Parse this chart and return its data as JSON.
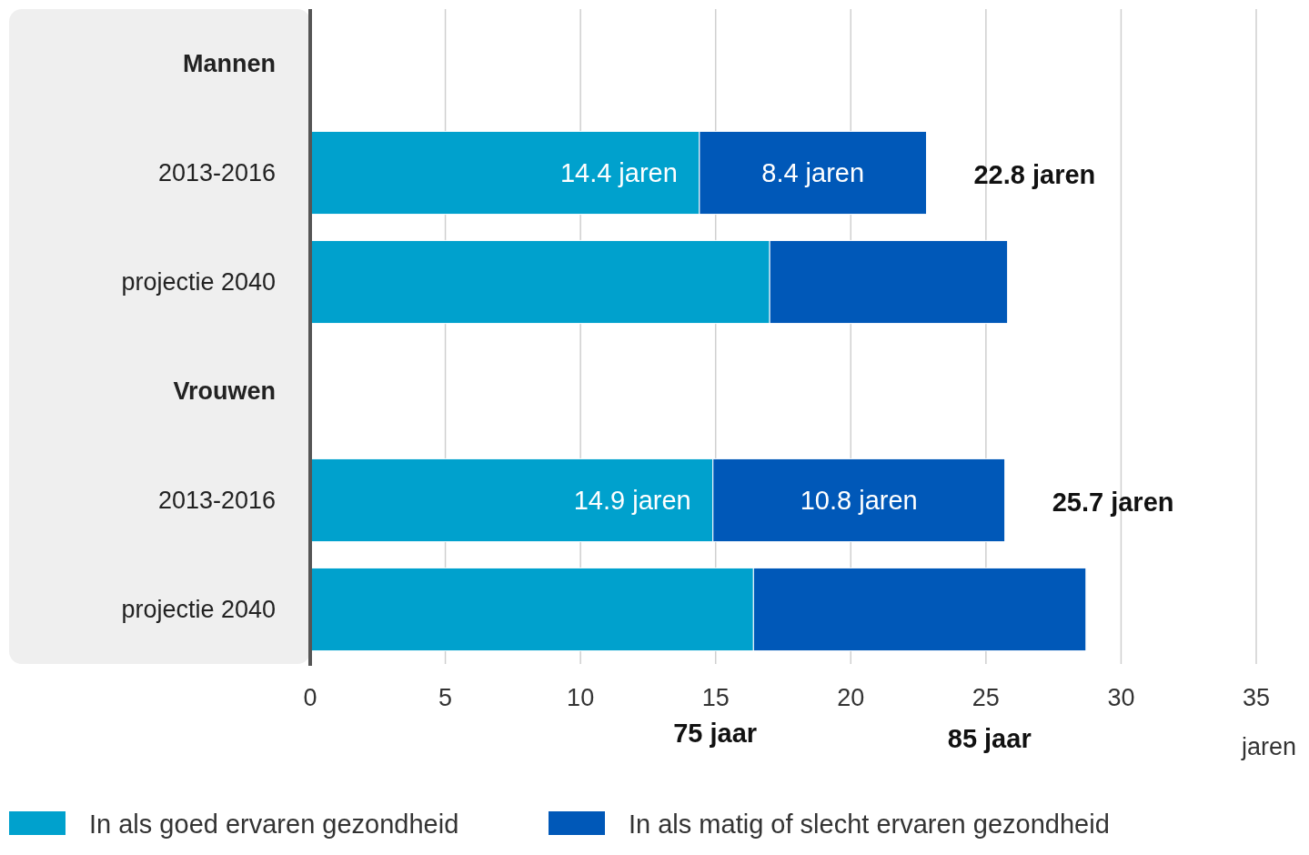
{
  "chart_data": {
    "type": "bar",
    "orientation": "horizontal",
    "stacked": true,
    "xlabel": "jaren",
    "categories": [
      "Mannen",
      "2013-2016",
      "projectie 2040",
      "Vrouwen",
      "2013-2016",
      "projectie 2040"
    ],
    "series": [
      {
        "name": "In als goed ervaren gezondheid",
        "color": "#00a1cd",
        "values": [
          null,
          14.4,
          17.0,
          null,
          14.9,
          16.4
        ],
        "value_labels": [
          null,
          "14.4 jaren",
          null,
          null,
          "14.9 jaren",
          null
        ]
      },
      {
        "name": "In als matig of slecht ervaren gezondheid",
        "color": "#0058b8",
        "values": [
          null,
          8.4,
          8.8,
          null,
          10.8,
          12.3
        ],
        "value_labels": [
          null,
          "8.4 jaren",
          null,
          null,
          "10.8 jaren",
          null
        ]
      }
    ],
    "totals": [
      null,
      "22.8 jaren",
      null,
      null,
      "25.7 jaren",
      null
    ],
    "xlim": [
      0,
      35
    ],
    "xticks": [
      0,
      5,
      10,
      15,
      20,
      25,
      30,
      35
    ],
    "grid": "x",
    "legend": "bottom",
    "annotations": [
      "75 jaar",
      "85 jaar"
    ]
  }
}
